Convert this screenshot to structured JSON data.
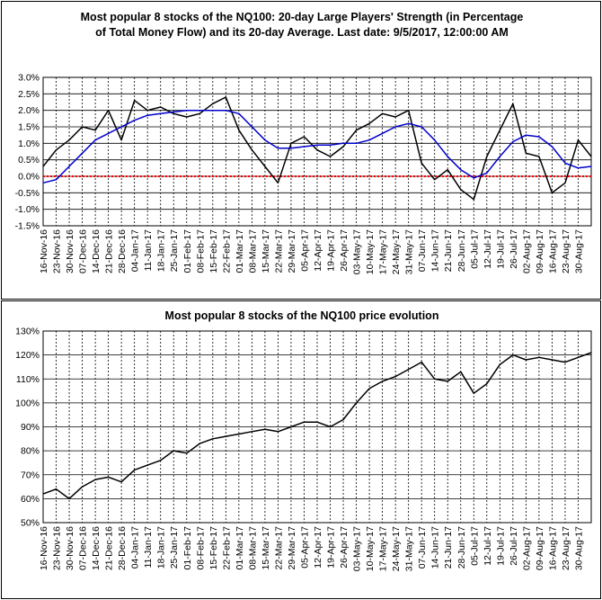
{
  "chart_data": [
    {
      "type": "line",
      "title": "Most popular 8 stocks of the NQ100: 20-day Large Players' Strength (in Percentage",
      "subtitle": "of Total Money Flow) and its 20-day Average. Last date: 9/5/2017, 12:00:00 AM",
      "xlabel": "",
      "ylabel": "",
      "ylim": [
        -1.5,
        3.0
      ],
      "ytick_values": [
        -1.5,
        -1.0,
        -0.5,
        0.0,
        0.5,
        1.0,
        1.5,
        2.0,
        2.5,
        3.0
      ],
      "ytick_labels": [
        "-1.5%",
        "-1.0%",
        "-0.5%",
        "0.0%",
        "0.5%",
        "1.0%",
        "1.5%",
        "2.0%",
        "2.5%",
        "3.0%"
      ],
      "grid": true,
      "x": [
        "16-Nov-16",
        "23-Nov-16",
        "30-Nov-16",
        "07-Dec-16",
        "14-Dec-16",
        "21-Dec-16",
        "28-Dec-16",
        "04-Jan-17",
        "11-Jan-17",
        "18-Jan-17",
        "25-Jan-17",
        "01-Feb-17",
        "08-Feb-17",
        "15-Feb-17",
        "22-Feb-17",
        "01-Mar-17",
        "08-Mar-17",
        "15-Mar-17",
        "22-Mar-17",
        "29-Mar-17",
        "05-Apr-17",
        "12-Apr-17",
        "19-Apr-17",
        "26-Apr-17",
        "03-May-17",
        "10-May-17",
        "17-May-17",
        "24-May-17",
        "31-May-17",
        "07-Jun-17",
        "14-Jun-17",
        "21-Jun-17",
        "28-Jun-17",
        "05-Jul-17",
        "12-Jul-17",
        "19-Jul-17",
        "26-Jul-17",
        "02-Aug-17",
        "09-Aug-17",
        "16-Aug-17",
        "23-Aug-17",
        "30-Aug-17",
        "05-Sep-17"
      ],
      "xtick_labels": [
        "16-Nov-16",
        "23-Nov-16",
        "30-Nov-16",
        "07-Dec-16",
        "14-Dec-16",
        "21-Dec-16",
        "28-Dec-16",
        "04-Jan-17",
        "11-Jan-17",
        "18-Jan-17",
        "25-Jan-17",
        "01-Feb-17",
        "08-Feb-17",
        "15-Feb-17",
        "22-Feb-17",
        "01-Mar-17",
        "08-Mar-17",
        "15-Mar-17",
        "22-Mar-17",
        "29-Mar-17",
        "05-Apr-17",
        "12-Apr-17",
        "19-Apr-17",
        "26-Apr-17",
        "03-May-17",
        "10-May-17",
        "17-May-17",
        "24-May-17",
        "31-May-17",
        "07-Jun-17",
        "14-Jun-17",
        "21-Jun-17",
        "28-Jun-17",
        "05-Jul-17",
        "12-Jul-17",
        "19-Jul-17",
        "26-Jul-17",
        "02-Aug-17",
        "09-Aug-17",
        "16-Aug-17",
        "23-Aug-17",
        "30-Aug-17"
      ],
      "series": [
        {
          "color": "#000000",
          "values": [
            0.3,
            0.8,
            1.1,
            1.5,
            1.4,
            2.0,
            1.1,
            2.3,
            2.0,
            2.1,
            1.9,
            1.8,
            1.9,
            2.2,
            2.4,
            1.4,
            0.8,
            0.3,
            -0.2,
            1.0,
            1.2,
            0.8,
            0.6,
            0.9,
            1.4,
            1.6,
            1.9,
            1.8,
            2.0,
            0.4,
            -0.1,
            0.2,
            -0.4,
            -0.7,
            0.6,
            1.4,
            2.2,
            0.7,
            0.6,
            -0.5,
            -0.2,
            1.1,
            0.6
          ]
        },
        {
          "color": "#0000cc",
          "values": [
            -0.2,
            -0.1,
            0.3,
            0.7,
            1.1,
            1.3,
            1.5,
            1.7,
            1.85,
            1.9,
            1.95,
            2.0,
            2.0,
            2.0,
            2.0,
            1.9,
            1.5,
            1.1,
            0.85,
            0.85,
            0.9,
            0.95,
            0.95,
            1.0,
            1.0,
            1.1,
            1.3,
            1.5,
            1.6,
            1.5,
            1.1,
            0.6,
            0.2,
            -0.05,
            0.1,
            0.6,
            1.05,
            1.25,
            1.2,
            0.9,
            0.4,
            0.25,
            0.3
          ]
        }
      ],
      "reference_line": {
        "value": 0.0,
        "color": "#ff0000",
        "style": "dotted"
      }
    },
    {
      "type": "line",
      "title": "Most popular 8 stocks of the NQ100 price evolution",
      "xlabel": "",
      "ylabel": "",
      "ylim": [
        50,
        130
      ],
      "ytick_values": [
        50,
        60,
        70,
        80,
        90,
        100,
        110,
        120,
        130
      ],
      "ytick_labels": [
        "50%",
        "60%",
        "70%",
        "80%",
        "90%",
        "100%",
        "110%",
        "120%",
        "130%"
      ],
      "grid": true,
      "x": [
        "16-Nov-16",
        "23-Nov-16",
        "30-Nov-16",
        "07-Dec-16",
        "14-Dec-16",
        "21-Dec-16",
        "28-Dec-16",
        "04-Jan-17",
        "11-Jan-17",
        "18-Jan-17",
        "25-Jan-17",
        "01-Feb-17",
        "08-Feb-17",
        "15-Feb-17",
        "22-Feb-17",
        "01-Mar-17",
        "08-Mar-17",
        "15-Mar-17",
        "22-Mar-17",
        "29-Mar-17",
        "05-Apr-17",
        "12-Apr-17",
        "19-Apr-17",
        "26-Apr-17",
        "03-May-17",
        "10-May-17",
        "17-May-17",
        "24-May-17",
        "31-May-17",
        "07-Jun-17",
        "14-Jun-17",
        "21-Jun-17",
        "28-Jun-17",
        "05-Jul-17",
        "12-Jul-17",
        "19-Jul-17",
        "26-Jul-17",
        "02-Aug-17",
        "09-Aug-17",
        "16-Aug-17",
        "23-Aug-17",
        "30-Aug-17",
        "05-Sep-17"
      ],
      "xtick_labels": [
        "16-Nov-16",
        "23-Nov-16",
        "30-Nov-16",
        "07-Dec-16",
        "14-Dec-16",
        "21-Dec-16",
        "28-Dec-16",
        "04-Jan-17",
        "11-Jan-17",
        "18-Jan-17",
        "25-Jan-17",
        "01-Feb-17",
        "08-Feb-17",
        "15-Feb-17",
        "22-Feb-17",
        "01-Mar-17",
        "08-Mar-17",
        "15-Mar-17",
        "22-Mar-17",
        "29-Mar-17",
        "05-Apr-17",
        "12-Apr-17",
        "19-Apr-17",
        "26-Apr-17",
        "03-May-17",
        "10-May-17",
        "17-May-17",
        "24-May-17",
        "31-May-17",
        "07-Jun-17",
        "14-Jun-17",
        "21-Jun-17",
        "28-Jun-17",
        "05-Jul-17",
        "12-Jul-17",
        "19-Jul-17",
        "26-Jul-17",
        "02-Aug-17",
        "09-Aug-17",
        "16-Aug-17",
        "23-Aug-17",
        "30-Aug-17"
      ],
      "series": [
        {
          "color": "#000000",
          "values": [
            62,
            64,
            60,
            65,
            68,
            69,
            67,
            72,
            74,
            76,
            80,
            79,
            83,
            85,
            86,
            87,
            88,
            89,
            88,
            90,
            92,
            92,
            90,
            93,
            100,
            106,
            109,
            111,
            114,
            117,
            110,
            109,
            113,
            104,
            108,
            116,
            120,
            118,
            119,
            118,
            117,
            119,
            121
          ]
        }
      ]
    }
  ]
}
